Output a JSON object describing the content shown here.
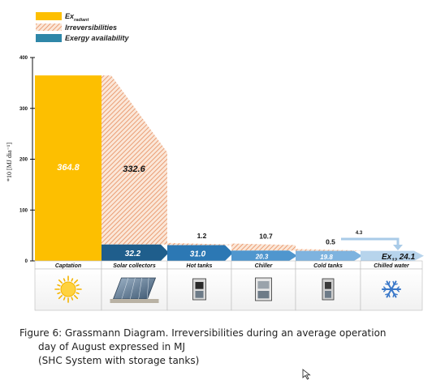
{
  "legend": [
    {
      "label": "Ex",
      "sub": "radiant",
      "color": "#FDBF00",
      "swatch": "solid"
    },
    {
      "label": "Irreversibilities",
      "color": "#E8956A",
      "swatch": "hatch"
    },
    {
      "label": "Exergy availability",
      "color": "#2F87A8",
      "swatch": "solid"
    }
  ],
  "chart_data": {
    "type": "grassmann",
    "ylabel": "*10 [MJ dia⁻¹]",
    "ylim": [
      0,
      400
    ],
    "yticks": [
      0,
      100,
      200,
      300,
      400
    ],
    "stages": [
      "Captation",
      "Solar collectors",
      "Hot tanks",
      "Chiller",
      "Cold tanks",
      "Chilled water"
    ],
    "radiant": 364.8,
    "irreversibilities": [
      {
        "stage": "Solar collectors",
        "value": 332.6
      },
      {
        "stage": "Hot tanks",
        "value": 1.2
      },
      {
        "stage": "Chiller",
        "value": 10.7
      },
      {
        "stage": "Cold tanks",
        "value": 0.5
      }
    ],
    "exergy_flow": [
      {
        "stage": "Solar collectors",
        "value": 32.2,
        "color": "#1F5E8C"
      },
      {
        "stage": "Hot tanks",
        "value": 31.0,
        "color": "#2C78B4"
      },
      {
        "stage": "Chiller",
        "value": 20.3,
        "color": "#4F96CE"
      },
      {
        "stage": "Cold tanks",
        "value": 19.8,
        "color": "#7EB3DF"
      }
    ],
    "bypass": {
      "value": 4.3,
      "from": "Cold tanks",
      "to": "Chilled water"
    },
    "output": {
      "label": "Ex",
      "sub": "12",
      "value": "24.1"
    },
    "grid": false,
    "legend_position": "top-left"
  },
  "caption": {
    "line1": "Figure 6: Grassmann Diagram. Irreversibilities during an average operation",
    "line2": "day of August expressed in MJ",
    "line3": "(SHC System with storage tanks)"
  },
  "icons": [
    "sun-icon",
    "solar-panel-icon",
    "hot-tank-icon",
    "chiller-icon",
    "cold-tank-icon",
    "snowflake-icon"
  ]
}
